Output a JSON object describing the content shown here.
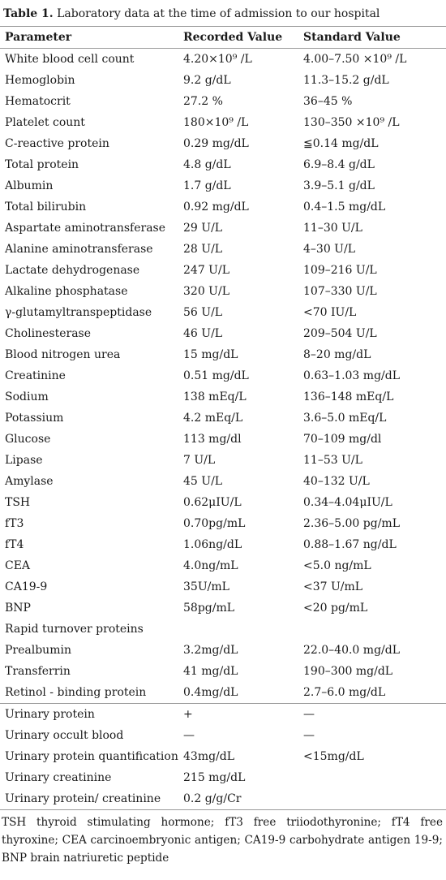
{
  "title": {
    "label": "Table 1.",
    "text": "Laboratory data at the time of admission to our hospital"
  },
  "table": {
    "header": [
      "Parameter",
      "Recorded Value",
      "Standard Value"
    ],
    "sections": [
      {
        "rows": [
          [
            "White blood cell count",
            "4.20×10⁹ /L",
            "4.00–7.50 ×10⁹ /L"
          ],
          [
            "Hemoglobin",
            "9.2 g/dL",
            "11.3–15.2 g/dL"
          ],
          [
            "Hematocrit",
            "27.2 %",
            "36–45 %"
          ],
          [
            "Platelet count",
            "180×10⁹ /L",
            "130–350 ×10⁹ /L"
          ],
          [
            "C-reactive protein",
            "0.29 mg/dL",
            "≦0.14 mg/dL"
          ],
          [
            "Total protein",
            "4.8 g/dL",
            "6.9–8.4 g/dL"
          ],
          [
            "Albumin",
            "1.7 g/dL",
            "3.9–5.1 g/dL"
          ],
          [
            "Total bilirubin",
            "0.92 mg/dL",
            "0.4–1.5 mg/dL"
          ],
          [
            "Aspartate aminotransferase",
            "29 U/L",
            "11–30 U/L"
          ],
          [
            "Alanine aminotransferase",
            "28 U/L",
            "4–30 U/L"
          ],
          [
            "Lactate dehydrogenase",
            "247 U/L",
            "109–216 U/L"
          ],
          [
            "Alkaline phosphatase",
            "320 U/L",
            "107–330 U/L"
          ],
          [
            "γ-glutamyltranspeptidase",
            "56 U/L",
            "<70 IU/L"
          ],
          [
            "Cholinesterase",
            "46 U/L",
            "209–504 U/L"
          ],
          [
            "Blood nitrogen urea",
            "15 mg/dL",
            "8–20 mg/dL"
          ],
          [
            "Creatinine",
            "0.51 mg/dL",
            "0.63–1.03 mg/dL"
          ],
          [
            "Sodium",
            "138 mEq/L",
            "136–148 mEq/L"
          ],
          [
            "Potassium",
            "4.2 mEq/L",
            "3.6–5.0 mEq/L"
          ],
          [
            "Glucose",
            "113 mg/dl",
            "70–109 mg/dl"
          ],
          [
            "Lipase",
            "7 U/L",
            "11–53 U/L"
          ],
          [
            "Amylase",
            "45 U/L",
            "40–132 U/L"
          ],
          [
            "TSH",
            "0.62μIU/L",
            "0.34–4.04μIU/L"
          ],
          [
            "fT3",
            "0.70pg/mL",
            "2.36–5.00 pg/mL"
          ],
          [
            "fT4",
            "1.06ng/dL",
            "0.88–1.67 ng/dL"
          ],
          [
            "CEA",
            "4.0ng/mL",
            "<5.0 ng/mL"
          ],
          [
            "CA19-9",
            "35U/mL",
            "<37 U/mL"
          ],
          [
            "BNP",
            "58pg/mL",
            "<20 pg/mL"
          ],
          [
            "Rapid turnover proteins"
          ],
          [
            "Prealbumin",
            "3.2mg/dL",
            "22.0–40.0 mg/dL"
          ],
          [
            "Transferrin",
            "41 mg/dL",
            "190–300 mg/dL"
          ],
          [
            "Retinol - binding protein",
            "0.4mg/dL",
            "2.7–6.0 mg/dL"
          ]
        ]
      },
      {
        "rows": [
          [
            "Urinary protein",
            "+",
            "—"
          ],
          [
            "Urinary occult blood",
            "—",
            "—"
          ],
          [
            "Urinary protein quantification",
            "43mg/dL",
            "<15mg/dL"
          ],
          [
            "Urinary creatinine",
            "215 mg/dL"
          ],
          [
            "Urinary protein/ creatinine",
            "0.2 g/g/Cr"
          ]
        ]
      }
    ]
  },
  "footnote": "TSH thyroid stimulating hormone; fT3 free triiodothyronine; fT4 free thyroxine; CEA carcinoembryonic antigen; CA19-9 carbohydrate antigen 19-9; BNP brain natriuretic peptide"
}
